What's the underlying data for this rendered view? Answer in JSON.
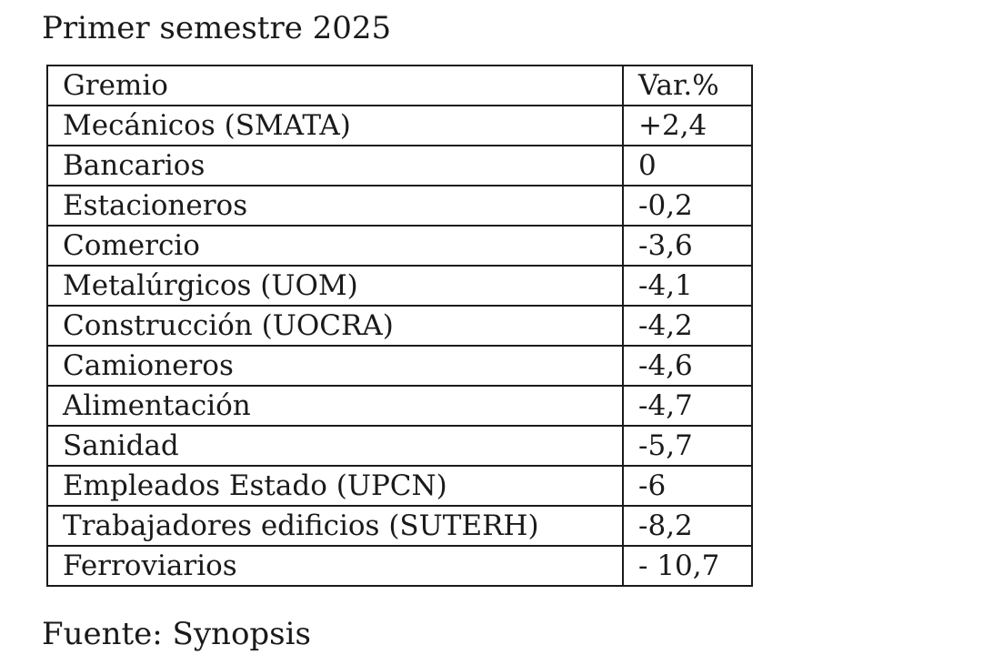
{
  "title": "Primer semestre 2025",
  "table": {
    "headers": [
      "Gremio",
      "Var.%"
    ],
    "rows": [
      [
        "Mecánicos (SMATA)",
        "+2,4"
      ],
      [
        "Bancarios",
        "0"
      ],
      [
        "Estacioneros",
        "-0,2"
      ],
      [
        "Comercio",
        "-3,6"
      ],
      [
        "Metalúrgicos (UOM)",
        "-4,1"
      ],
      [
        "Construcción (UOCRA)",
        "-4,2"
      ],
      [
        "Camioneros",
        "-4,6"
      ],
      [
        "Alimentación",
        "-4,7"
      ],
      [
        "Sanidad",
        "-5,7"
      ],
      [
        "Empleados Estado (UPCN)",
        "-6"
      ],
      [
        "Trabajadores edificios (SUTERH)",
        "-8,2"
      ],
      [
        "Ferroviarios",
        "- 10,7"
      ]
    ]
  },
  "source": "Fuente: Synopsis"
}
